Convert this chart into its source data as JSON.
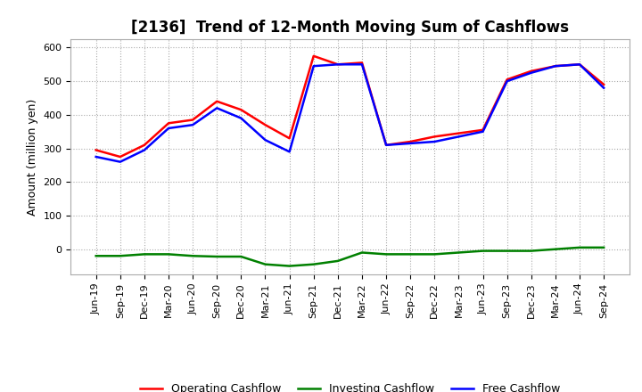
{
  "title": "[2136]  Trend of 12-Month Moving Sum of Cashflows",
  "ylabel": "Amount (million yen)",
  "ylim": [
    -75,
    625
  ],
  "yticks": [
    0,
    100,
    200,
    300,
    400,
    500,
    600
  ],
  "labels": [
    "Jun-19",
    "Sep-19",
    "Dec-19",
    "Mar-20",
    "Jun-20",
    "Sep-20",
    "Dec-20",
    "Mar-21",
    "Jun-21",
    "Sep-21",
    "Dec-21",
    "Mar-22",
    "Jun-22",
    "Sep-22",
    "Dec-22",
    "Mar-23",
    "Jun-23",
    "Sep-23",
    "Dec-23",
    "Mar-24",
    "Jun-24",
    "Sep-24"
  ],
  "operating_cashflow": [
    295,
    275,
    310,
    375,
    385,
    440,
    415,
    370,
    330,
    575,
    550,
    555,
    310,
    320,
    335,
    345,
    355,
    505,
    530,
    545,
    550,
    490
  ],
  "investing_cashflow": [
    -20,
    -20,
    -15,
    -15,
    -20,
    -22,
    -22,
    -45,
    -50,
    -45,
    -35,
    -10,
    -15,
    -15,
    -15,
    -10,
    -5,
    -5,
    -5,
    0,
    5,
    5
  ],
  "free_cashflow": [
    275,
    260,
    295,
    360,
    370,
    420,
    390,
    325,
    290,
    545,
    550,
    550,
    310,
    315,
    320,
    335,
    350,
    500,
    525,
    545,
    550,
    480
  ],
  "operating_color": "#FF0000",
  "investing_color": "#008000",
  "free_color": "#0000FF",
  "bg_color": "#FFFFFF",
  "plot_bg_color": "#FFFFFF",
  "grid_color": "#AAAAAA",
  "line_width": 1.8,
  "title_fontsize": 12,
  "legend_fontsize": 9,
  "tick_fontsize": 8,
  "ylabel_fontsize": 9
}
